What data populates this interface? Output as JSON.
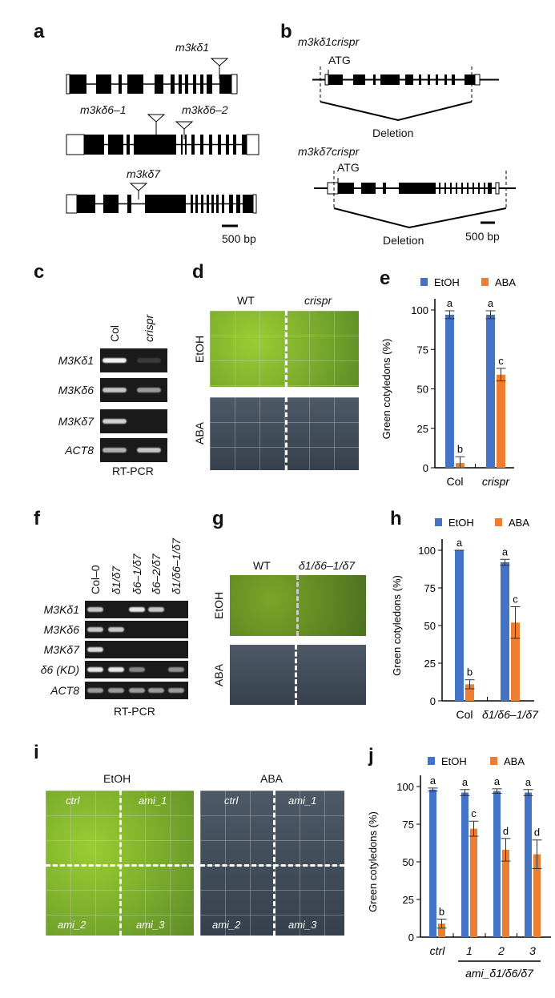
{
  "panels": {
    "a": "a",
    "b": "b",
    "c": "c",
    "d": "d",
    "e": "e",
    "f": "f",
    "g": "g",
    "h": "h",
    "i": "i",
    "j": "j"
  },
  "panel_a": {
    "alleles": [
      "m3kδ1",
      "m3kδ6–1",
      "m3kδ6–2",
      "m3kδ7"
    ],
    "scale": "500 bp"
  },
  "panel_b": {
    "constructs": [
      "m3kδ1crispr",
      "m3kδ7crispr"
    ],
    "atg": "ATG",
    "deletion": "Deletion",
    "scale": "500 bp"
  },
  "panel_c": {
    "columns": [
      "Col",
      "crispr"
    ],
    "rows": [
      "M3Kδ1",
      "M3Kδ6",
      "M3Kδ7",
      "ACT8"
    ],
    "band_intensity": [
      [
        1,
        0.15
      ],
      [
        0.8,
        0.6
      ],
      [
        0.85,
        0
      ],
      [
        0.7,
        0.8
      ]
    ],
    "footer": "RT-PCR"
  },
  "panel_d": {
    "columns": [
      "WT",
      "crispr"
    ],
    "rows": [
      "EtOH",
      "ABA"
    ]
  },
  "panel_f": {
    "columns": [
      "Col–0",
      "δ1/δ7",
      "δ6–1/δ7",
      "δ6–2/δ7",
      "δ1/δ6–1/δ7"
    ],
    "rows": [
      "M3Kδ1",
      "M3Kδ6",
      "M3Kδ7",
      "δ6 (KD)",
      "ACT8"
    ],
    "band_intensity": [
      [
        0.8,
        0,
        0.95,
        0.8,
        0
      ],
      [
        0.8,
        0.8,
        0,
        0,
        0
      ],
      [
        0.9,
        0,
        0,
        0,
        0
      ],
      [
        0.95,
        0.95,
        0.5,
        0,
        0.55
      ],
      [
        0.6,
        0.6,
        0.6,
        0.6,
        0.6
      ]
    ],
    "footer": "RT-PCR"
  },
  "panel_g": {
    "columns": [
      "WT",
      "δ1/δ6–1/δ7"
    ],
    "rows": [
      "EtOH",
      "ABA"
    ]
  },
  "panel_i": {
    "treatments": [
      "EtOH",
      "ABA"
    ],
    "quadrants": [
      "ctrl",
      "ami_1",
      "ami_2",
      "ami_3"
    ]
  },
  "colors": {
    "etoh": "#4472c4",
    "aba": "#ed7d31"
  },
  "chart_data": [
    {
      "type": "bar",
      "panel": "e",
      "legend": [
        "EtOH",
        "ABA"
      ],
      "ylabel": "Green cotyledons (%)",
      "ylim": [
        0,
        100
      ],
      "yticks": [
        0,
        25,
        50,
        75,
        100
      ],
      "categories": [
        "Col",
        "crispr"
      ],
      "category_italic": [
        false,
        true
      ],
      "series": [
        {
          "name": "EtOH",
          "values": [
            97,
            97
          ],
          "err": [
            2.5,
            2.5
          ],
          "letters": [
            "a",
            "a"
          ]
        },
        {
          "name": "ABA",
          "values": [
            3,
            59
          ],
          "err": [
            4,
            4
          ],
          "letters": [
            "b",
            "c"
          ]
        }
      ]
    },
    {
      "type": "bar",
      "panel": "h",
      "legend": [
        "EtOH",
        "ABA"
      ],
      "ylabel": "Green cotyledons (%)",
      "ylim": [
        0,
        100
      ],
      "yticks": [
        0,
        25,
        50,
        75,
        100
      ],
      "categories": [
        "Col",
        "δ1/δ6–1/δ7"
      ],
      "category_italic": [
        false,
        true
      ],
      "series": [
        {
          "name": "EtOH",
          "values": [
            100,
            92
          ],
          "err": [
            0,
            2
          ],
          "letters": [
            "a",
            "a"
          ]
        },
        {
          "name": "ABA",
          "values": [
            11,
            52
          ],
          "err": [
            3,
            10.5
          ],
          "letters": [
            "b",
            "c"
          ]
        }
      ]
    },
    {
      "type": "bar",
      "panel": "j",
      "legend": [
        "EtOH",
        "ABA"
      ],
      "ylabel": "Green cotyledons (%)",
      "ylim": [
        0,
        100
      ],
      "yticks": [
        0,
        25,
        50,
        75,
        100
      ],
      "categories": [
        "ctrl",
        "1",
        "2",
        "3"
      ],
      "category_italic": [
        true,
        true,
        true,
        true
      ],
      "group_label": "ami_δ1/δ6/δ7",
      "series": [
        {
          "name": "EtOH",
          "values": [
            98,
            96,
            97,
            96
          ],
          "err": [
            1,
            2,
            1.5,
            2
          ],
          "letters": [
            "a",
            "a",
            "a",
            "a"
          ]
        },
        {
          "name": "ABA",
          "values": [
            9,
            72,
            58,
            55
          ],
          "err": [
            3,
            5,
            7.5,
            9.5
          ],
          "letters": [
            "b",
            "c",
            "d",
            "d"
          ]
        }
      ]
    }
  ]
}
